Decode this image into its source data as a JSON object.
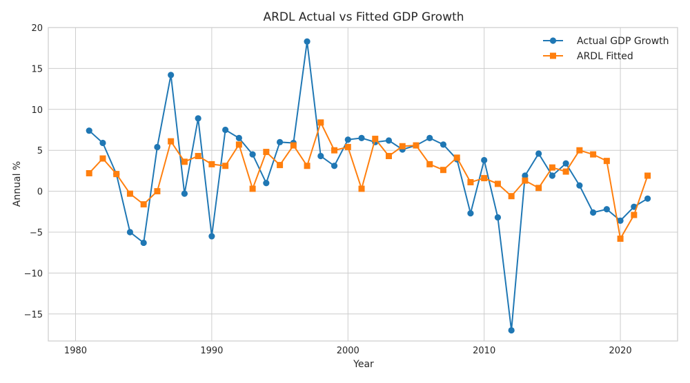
{
  "chart_data": {
    "type": "line",
    "title": "ARDL Actual vs Fitted GDP Growth",
    "xlabel": "Year",
    "ylabel": "Annual %",
    "xlim": [
      1978,
      2024.2
    ],
    "ylim": [
      -18.3,
      20
    ],
    "xticks": [
      1980,
      1990,
      2000,
      2010,
      2020
    ],
    "yticks": [
      20,
      15,
      10,
      5,
      0,
      -5,
      -10,
      -15
    ],
    "ytick_labels": [
      "20",
      "15",
      "10",
      "5",
      "0",
      "−5",
      "−10",
      "−15"
    ],
    "grid": true,
    "legend_position": "top-right",
    "x": [
      1981,
      1982,
      1983,
      1984,
      1985,
      1986,
      1987,
      1988,
      1989,
      1990,
      1991,
      1992,
      1993,
      1994,
      1995,
      1996,
      1997,
      1998,
      1999,
      2000,
      2001,
      2002,
      2003,
      2004,
      2005,
      2006,
      2007,
      2008,
      2009,
      2010,
      2011,
      2012,
      2013,
      2014,
      2015,
      2016,
      2017,
      2018,
      2019,
      2020,
      2021,
      2022
    ],
    "series": [
      {
        "name": "Actual GDP Growth",
        "color": "#1f77b4",
        "marker": "circle",
        "values": [
          7.4,
          5.9,
          2.1,
          -5.0,
          -6.3,
          5.4,
          14.2,
          -0.3,
          8.9,
          -5.5,
          7.5,
          6.5,
          4.5,
          1.0,
          6.0,
          5.9,
          18.3,
          4.3,
          3.1,
          6.3,
          6.5,
          6.0,
          6.2,
          5.1,
          5.6,
          6.5,
          5.7,
          3.9,
          -2.7,
          3.8,
          -3.2,
          -17.0,
          1.9,
          4.6,
          1.9,
          3.4,
          0.7,
          -2.6,
          -2.2,
          -3.6,
          -1.9,
          -0.9
        ]
      },
      {
        "name": "ARDL Fitted",
        "color": "#ff7f0e",
        "marker": "square",
        "values": [
          2.2,
          4.0,
          2.1,
          -0.3,
          -1.6,
          0.0,
          6.1,
          3.6,
          4.3,
          3.3,
          3.1,
          5.7,
          0.3,
          4.8,
          3.2,
          5.6,
          3.1,
          8.4,
          5.0,
          5.4,
          0.3,
          6.4,
          4.3,
          5.5,
          5.6,
          3.3,
          2.6,
          4.1,
          1.1,
          1.6,
          0.9,
          -0.6,
          1.3,
          0.4,
          2.9,
          2.4,
          5.0,
          4.5,
          3.7,
          -5.8,
          -2.9,
          1.9
        ]
      }
    ]
  }
}
